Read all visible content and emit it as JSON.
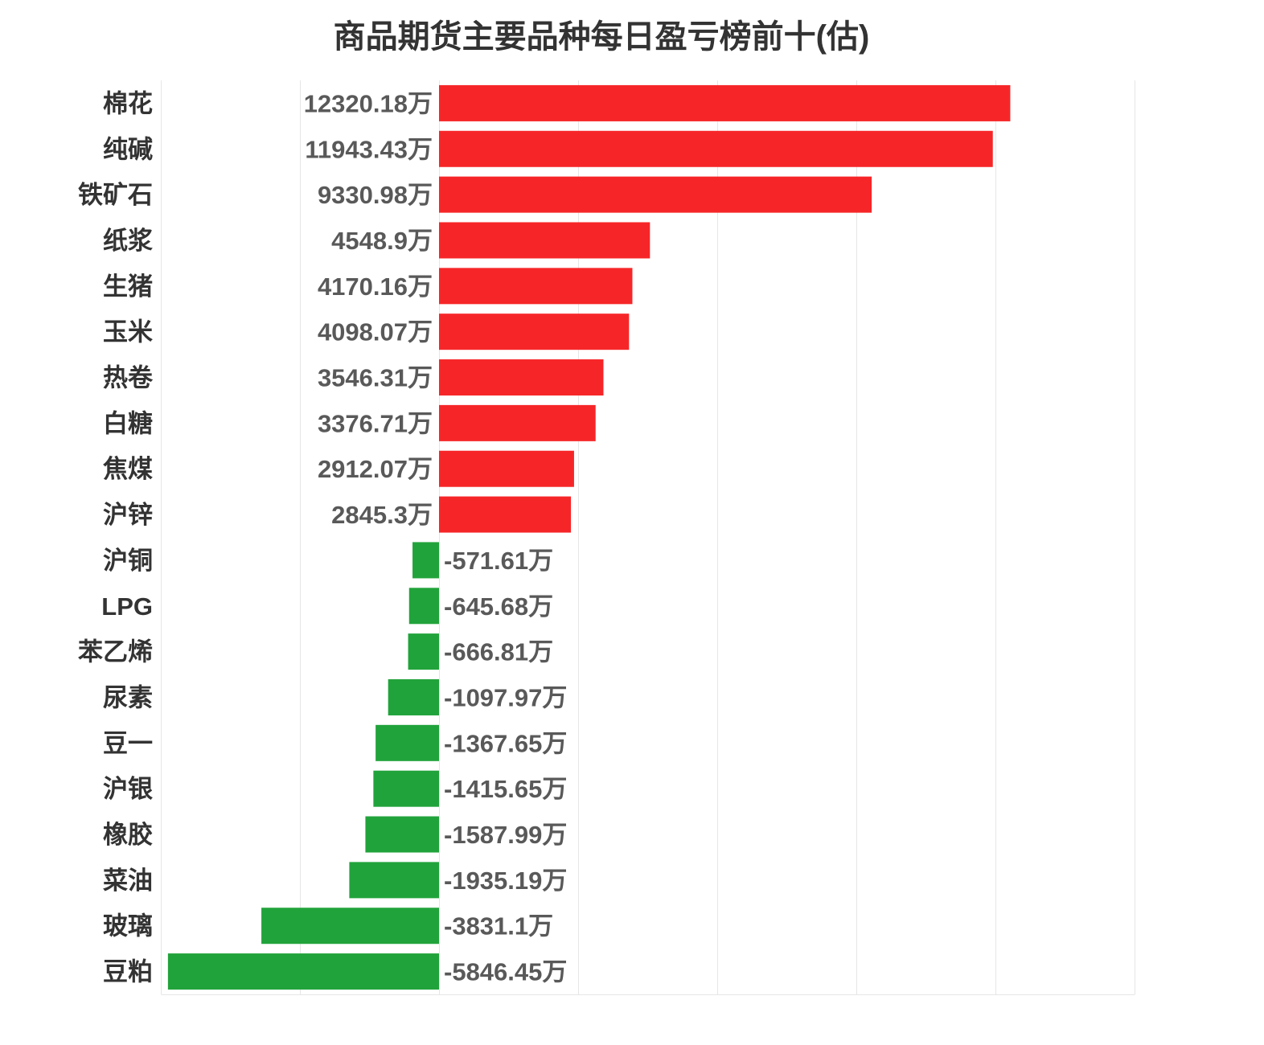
{
  "chart_data": {
    "type": "bar",
    "orientation": "horizontal",
    "title": "商品期货主要品种每日盈亏榜前十(估)",
    "categories": [
      "棉花",
      "纯碱",
      "铁矿石",
      "纸浆",
      "生猪",
      "玉米",
      "热卷",
      "白糖",
      "焦煤",
      "沪锌",
      "沪铜",
      "LPG",
      "苯乙烯",
      "尿素",
      "豆一",
      "沪银",
      "橡胶",
      "菜油",
      "玻璃",
      "豆粕"
    ],
    "values": [
      12320.18,
      11943.43,
      9330.98,
      4548.9,
      4170.16,
      4098.07,
      3546.31,
      3376.71,
      2912.07,
      2845.3,
      -571.61,
      -645.68,
      -666.81,
      -1097.97,
      -1367.65,
      -1415.65,
      -1587.99,
      -1935.19,
      -3831.1,
      -5846.45
    ],
    "unit": "万",
    "xlim": [
      -6000,
      15000
    ],
    "x_tick_interval": 3000,
    "grid": true,
    "colors": {
      "positive": "#f62628",
      "negative": "#21a33b"
    }
  }
}
